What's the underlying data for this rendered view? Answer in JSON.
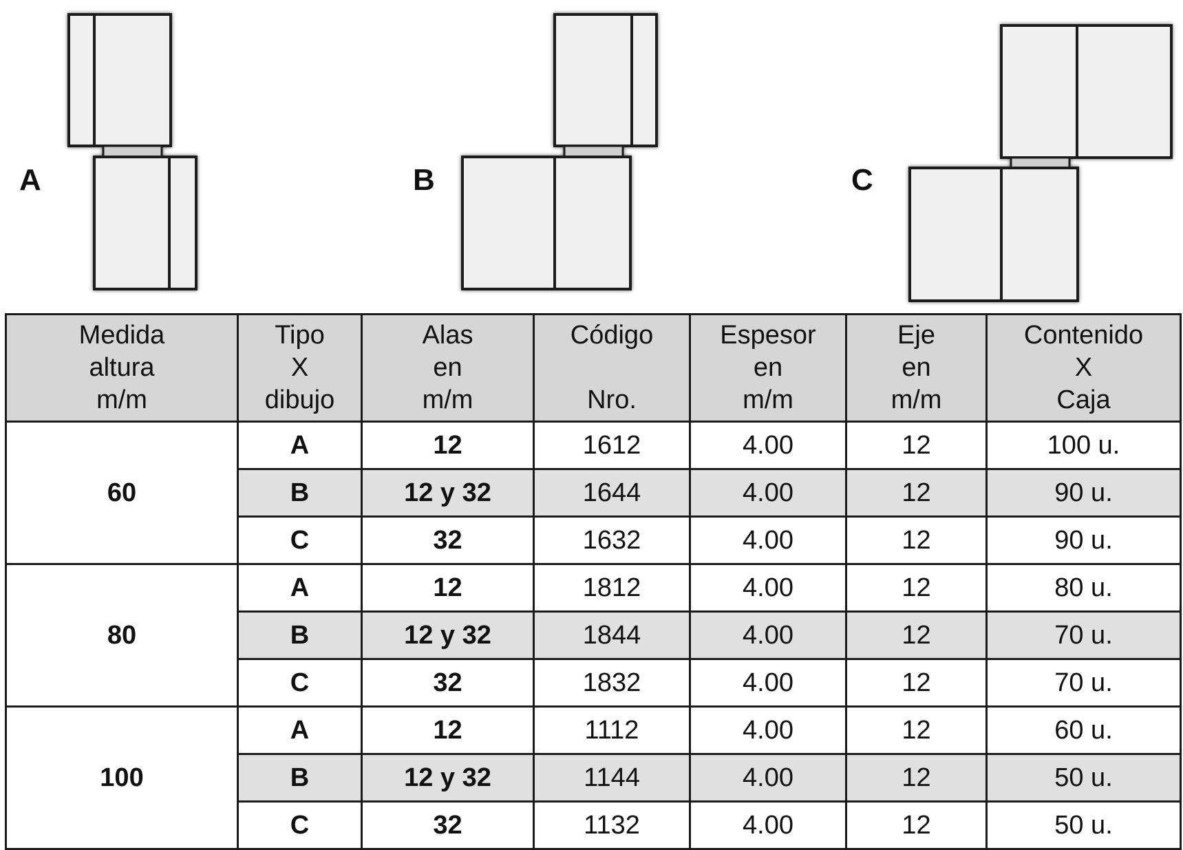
{
  "diagrams": [
    {
      "label": "A"
    },
    {
      "label": "B"
    },
    {
      "label": "C"
    }
  ],
  "table": {
    "headers": [
      [
        "Medida",
        "altura",
        "m/m"
      ],
      [
        "Tipo",
        "X",
        "dibujo"
      ],
      [
        "Alas",
        "en",
        "m/m"
      ],
      [
        "Código",
        "",
        "Nro."
      ],
      [
        "Espesor",
        "en",
        "m/m"
      ],
      [
        "Eje",
        "en",
        "m/m"
      ],
      [
        "Contenido",
        "X",
        "Caja"
      ]
    ],
    "groups": [
      {
        "medida": "60",
        "rows": [
          {
            "tipo": "A",
            "alas": "12",
            "codigo": "1612",
            "espesor": "4.00",
            "eje": "12",
            "contenido": "100 u."
          },
          {
            "tipo": "B",
            "alas": "12 y 32",
            "codigo": "1644",
            "espesor": "4.00",
            "eje": "12",
            "contenido": "90 u."
          },
          {
            "tipo": "C",
            "alas": "32",
            "codigo": "1632",
            "espesor": "4.00",
            "eje": "12",
            "contenido": "90 u."
          }
        ]
      },
      {
        "medida": "80",
        "rows": [
          {
            "tipo": "A",
            "alas": "12",
            "codigo": "1812",
            "espesor": "4.00",
            "eje": "12",
            "contenido": "80 u."
          },
          {
            "tipo": "B",
            "alas": "12 y 32",
            "codigo": "1844",
            "espesor": "4.00",
            "eje": "12",
            "contenido": "70 u."
          },
          {
            "tipo": "C",
            "alas": "32",
            "codigo": "1832",
            "espesor": "4.00",
            "eje": "12",
            "contenido": "70 u."
          }
        ]
      },
      {
        "medida": "100",
        "rows": [
          {
            "tipo": "A",
            "alas": "12",
            "codigo": "1112",
            "espesor": "4.00",
            "eje": "12",
            "contenido": "60 u."
          },
          {
            "tipo": "B",
            "alas": "12 y 32",
            "codigo": "1144",
            "espesor": "4.00",
            "eje": "12",
            "contenido": "50 u."
          },
          {
            "tipo": "C",
            "alas": "32",
            "codigo": "1132",
            "espesor": "4.00",
            "eje": "12",
            "contenido": "50 u."
          }
        ]
      }
    ]
  },
  "colors": {
    "header_bg": "#d6d6d6",
    "shaded_row_bg": "#e0e0e0",
    "leaf_fill": "#f0f0f0",
    "pin_fill": "#cfcfcf",
    "line": "#1a1a1a"
  }
}
